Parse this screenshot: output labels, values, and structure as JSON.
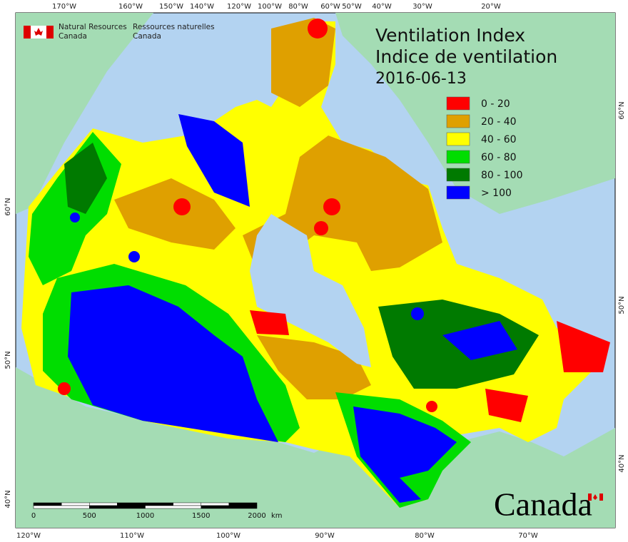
{
  "title": {
    "en": "Ventilation Index",
    "fr": "Indice de ventilation",
    "date": "2016-06-13"
  },
  "agency": {
    "en": [
      "Natural Resources",
      "Canada"
    ],
    "fr": [
      "Ressources naturelles",
      "Canada"
    ]
  },
  "legend": [
    {
      "label": "0 - 20",
      "color": "#ff0000"
    },
    {
      "label": "20 - 40",
      "color": "#dfa000"
    },
    {
      "label": "40 - 60",
      "color": "#ffff00"
    },
    {
      "label": "60 - 80",
      "color": "#00dd00"
    },
    {
      "label": "80 - 100",
      "color": "#007a00"
    },
    {
      "label": "> 100",
      "color": "#0000ff"
    }
  ],
  "top_labels": [
    "170°W",
    "160°W",
    "150°W",
    "140°W",
    "120°W",
    "100°W",
    "80°W",
    "60°W",
    "50°W",
    "40°W",
    "30°W",
    "20°W"
  ],
  "bottom_labels": [
    "120°W",
    "110°W",
    "100°W",
    "90°W",
    "80°W",
    "70°W"
  ],
  "left_labels": [
    "60°N",
    "50°N",
    "40°N"
  ],
  "right_labels": [
    "60°N",
    "50°N",
    "40°N"
  ],
  "scale_bar": {
    "ticks": [
      "0",
      "500",
      "1000",
      "1500",
      "2000"
    ],
    "unit": "km"
  },
  "wordmark": "Canada"
}
